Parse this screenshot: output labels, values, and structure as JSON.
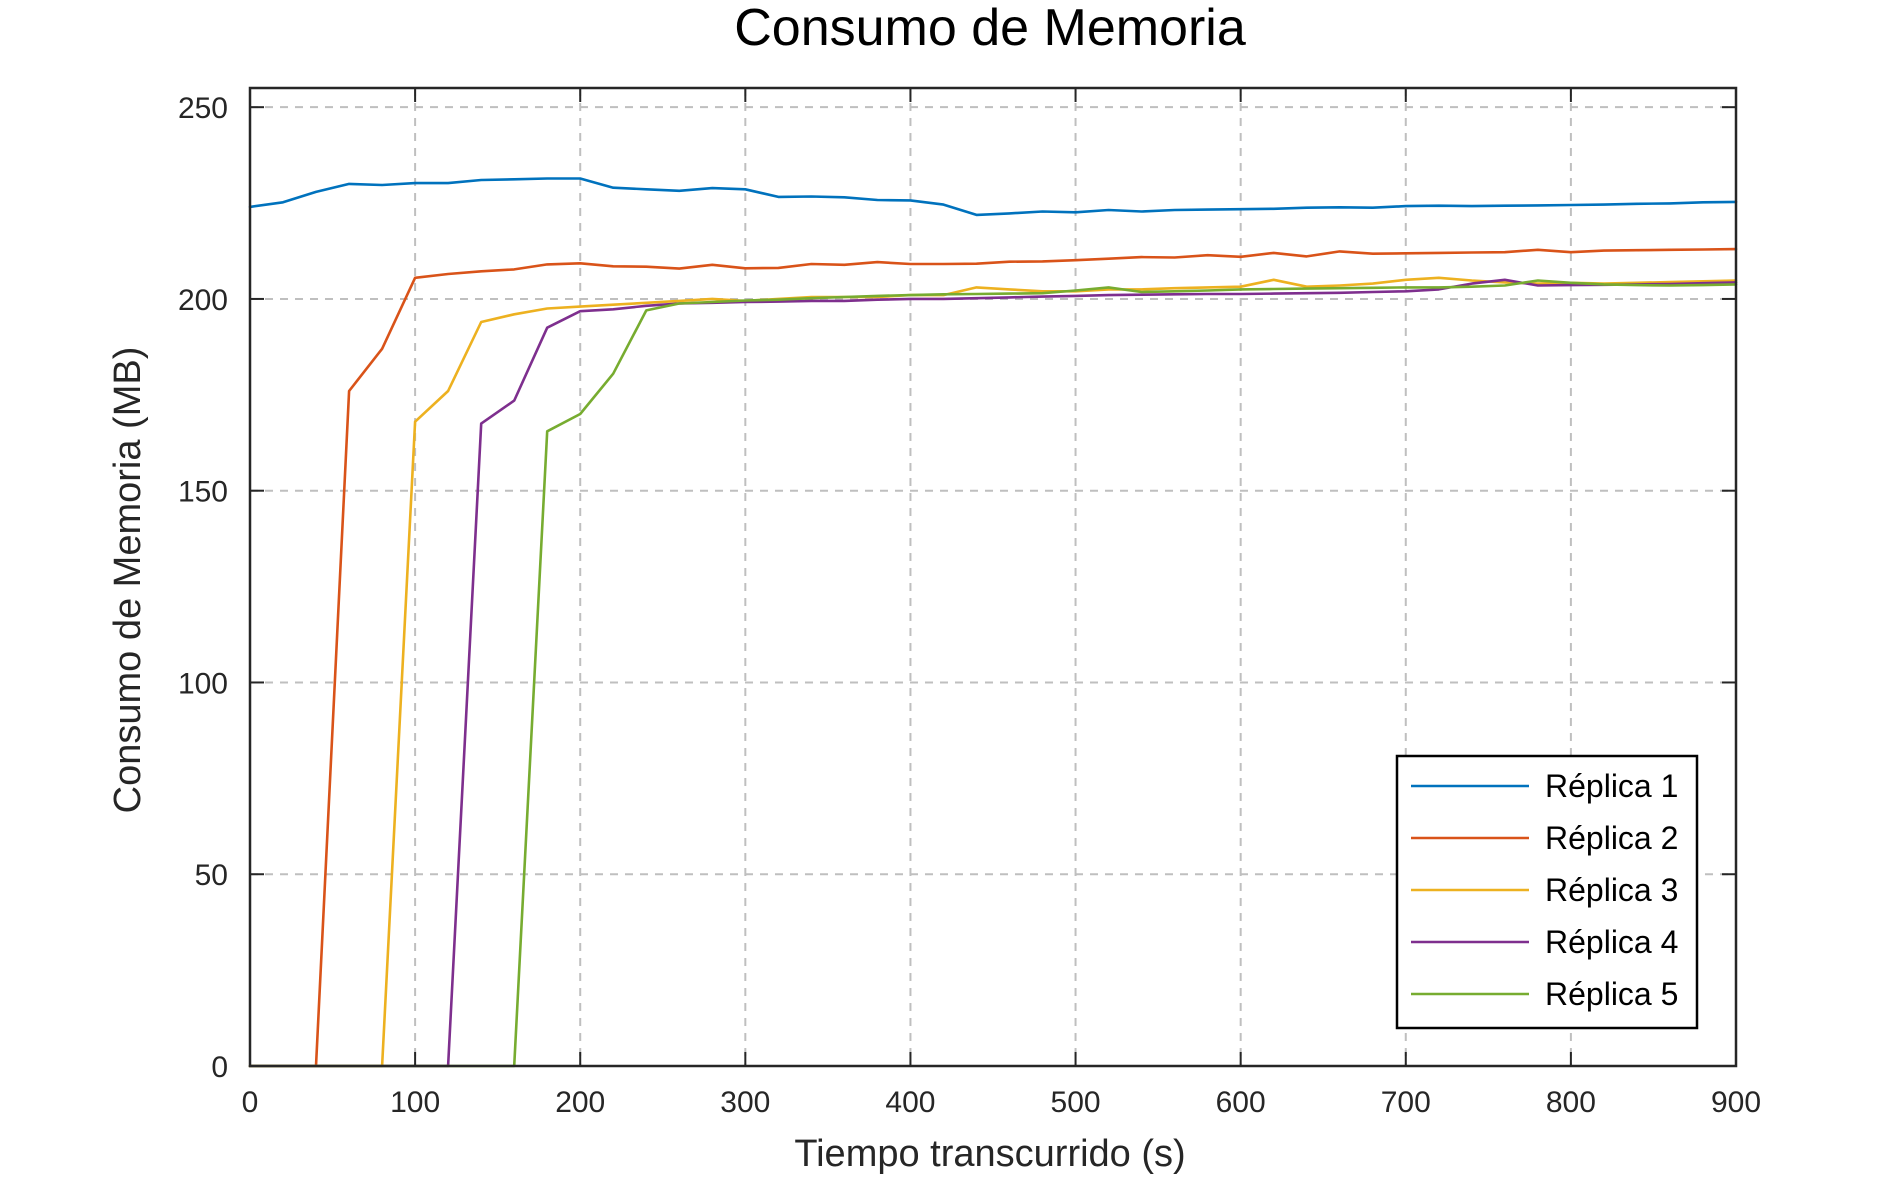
{
  "chart_data": {
    "type": "line",
    "title": "Consumo de Memoria",
    "xlabel": "Tiempo transcurrido (s)",
    "ylabel": "Consumo de Memoria (MB)",
    "xlim": [
      0,
      900
    ],
    "ylim": [
      0,
      255
    ],
    "xticks": [
      "0",
      "100",
      "200",
      "300",
      "400",
      "500",
      "600",
      "700",
      "800",
      "900"
    ],
    "yticks": [
      "0",
      "50",
      "100",
      "150",
      "200",
      "250"
    ],
    "grid": true,
    "legend_position": "bottom-right",
    "series": [
      {
        "name": "Réplica 1",
        "color": "#0072BD",
        "x": [
          0,
          20,
          40,
          60,
          80,
          100,
          120,
          140,
          160,
          180,
          200,
          220,
          240,
          260,
          280,
          300,
          320,
          340,
          360,
          380,
          400,
          420,
          440,
          460,
          480,
          500,
          520,
          540,
          560,
          580,
          600,
          620,
          640,
          660,
          680,
          700,
          720,
          740,
          760,
          780,
          800,
          820,
          840,
          860,
          880,
          900
        ],
        "y": [
          224.0,
          225.2,
          227.9,
          230.0,
          229.7,
          230.2,
          230.2,
          231.0,
          231.2,
          231.4,
          231.4,
          229.0,
          228.6,
          228.2,
          228.9,
          228.6,
          226.6,
          226.7,
          226.5,
          225.8,
          225.7,
          224.6,
          221.9,
          222.3,
          222.8,
          222.6,
          223.2,
          222.8,
          223.2,
          223.3,
          223.4,
          223.5,
          223.8,
          223.9,
          223.8,
          224.2,
          224.3,
          224.2,
          224.3,
          224.4,
          224.5,
          224.6,
          224.8,
          224.9,
          225.2,
          225.3
        ]
      },
      {
        "name": "Réplica 2",
        "color": "#D95319",
        "x": [
          0,
          20,
          40,
          60,
          80,
          100,
          120,
          140,
          160,
          180,
          200,
          220,
          240,
          260,
          280,
          300,
          320,
          340,
          360,
          380,
          400,
          420,
          440,
          460,
          480,
          500,
          520,
          540,
          560,
          580,
          600,
          620,
          640,
          660,
          680,
          700,
          720,
          740,
          760,
          780,
          800,
          820,
          840,
          860,
          880,
          900
        ],
        "y": [
          0,
          0,
          0,
          176.0,
          187.0,
          205.5,
          206.5,
          207.2,
          207.7,
          209.0,
          209.3,
          208.5,
          208.4,
          207.9,
          208.9,
          208.0,
          208.1,
          209.1,
          208.9,
          209.6,
          209.1,
          209.1,
          209.2,
          209.7,
          209.8,
          210.1,
          210.5,
          210.9,
          210.8,
          211.4,
          211.0,
          212.0,
          211.1,
          212.4,
          211.8,
          211.9,
          212.0,
          212.1,
          212.2,
          212.8,
          212.2,
          212.6,
          212.7,
          212.8,
          212.9,
          213.0
        ]
      },
      {
        "name": "Réplica 3",
        "color": "#EDB120",
        "x": [
          0,
          20,
          40,
          60,
          80,
          100,
          120,
          140,
          160,
          180,
          200,
          220,
          240,
          260,
          280,
          300,
          320,
          340,
          360,
          380,
          400,
          420,
          440,
          460,
          480,
          500,
          520,
          540,
          560,
          580,
          600,
          620,
          640,
          660,
          680,
          700,
          720,
          740,
          760,
          780,
          800,
          820,
          840,
          860,
          880,
          900
        ],
        "y": [
          0,
          0,
          0,
          0,
          0,
          168.0,
          176.0,
          194.0,
          196.0,
          197.5,
          198.0,
          198.5,
          199.0,
          199.5,
          200.0,
          199.5,
          200.0,
          200.5,
          200.5,
          200.5,
          201.0,
          201.0,
          203.0,
          202.5,
          202.0,
          202.0,
          202.5,
          202.5,
          202.8,
          203.0,
          203.2,
          205.0,
          203.2,
          203.5,
          204.0,
          205.0,
          205.5,
          204.8,
          204.3,
          204.0,
          204.2,
          204.0,
          204.2,
          204.4,
          204.6,
          204.8
        ]
      },
      {
        "name": "Réplica 4",
        "color": "#7E2F8E",
        "x": [
          0,
          20,
          40,
          60,
          80,
          100,
          120,
          140,
          160,
          180,
          200,
          220,
          240,
          260,
          280,
          300,
          320,
          340,
          360,
          380,
          400,
          420,
          440,
          460,
          480,
          500,
          520,
          540,
          560,
          580,
          600,
          620,
          640,
          660,
          680,
          700,
          720,
          740,
          760,
          780,
          800,
          820,
          840,
          860,
          880,
          900
        ],
        "y": [
          0,
          0,
          0,
          0,
          0,
          0,
          0,
          167.5,
          173.5,
          192.5,
          196.8,
          197.3,
          198.2,
          198.8,
          199.0,
          199.2,
          199.3,
          199.5,
          199.5,
          199.8,
          200.0,
          200.0,
          200.2,
          200.4,
          200.6,
          200.8,
          201.0,
          201.1,
          201.2,
          201.3,
          201.3,
          201.4,
          201.5,
          201.6,
          201.8,
          202.0,
          202.5,
          204.0,
          205.0,
          203.5,
          203.6,
          203.7,
          203.8,
          203.9,
          204.1,
          204.3
        ]
      },
      {
        "name": "Réplica 5",
        "color": "#77AC30",
        "x": [
          0,
          20,
          40,
          60,
          80,
          100,
          120,
          140,
          160,
          180,
          200,
          220,
          240,
          260,
          280,
          300,
          320,
          340,
          360,
          380,
          400,
          420,
          440,
          460,
          480,
          500,
          520,
          540,
          560,
          580,
          600,
          620,
          640,
          660,
          680,
          700,
          720,
          740,
          760,
          780,
          800,
          820,
          840,
          860,
          880,
          900
        ],
        "y": [
          0,
          0,
          0,
          0,
          0,
          0,
          0,
          0,
          0,
          165.5,
          170.0,
          180.5,
          197.0,
          198.8,
          199.2,
          199.6,
          199.8,
          200.2,
          200.5,
          200.8,
          201.0,
          201.2,
          201.3,
          201.4,
          201.5,
          202.2,
          203.0,
          201.8,
          202.0,
          202.2,
          202.5,
          202.6,
          202.7,
          202.8,
          202.9,
          203.0,
          203.0,
          203.2,
          203.5,
          204.8,
          204.2,
          203.8,
          203.6,
          203.5,
          203.6,
          203.8
        ]
      }
    ]
  }
}
